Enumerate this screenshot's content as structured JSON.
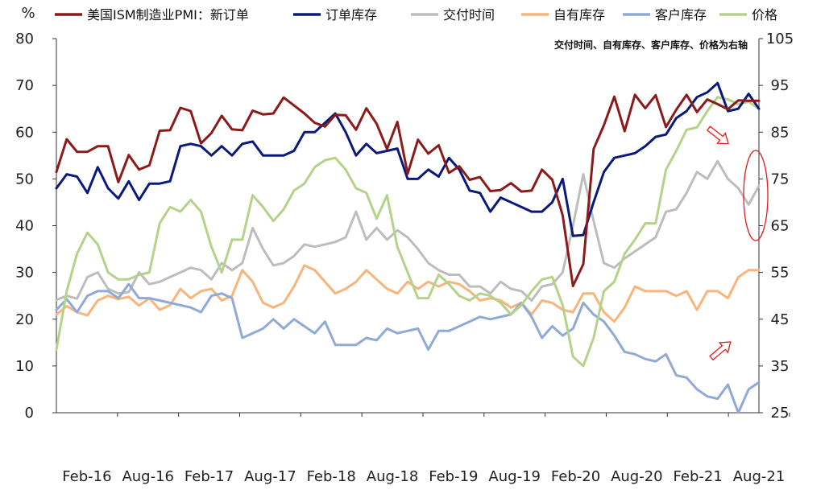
{
  "chart_data": {
    "type": "line",
    "unit_label": "%",
    "note": "交付时间、自有库存、客户库存、价格为右轴",
    "x_ticks": [
      "Feb-16",
      "Aug-16",
      "Feb-17",
      "Aug-17",
      "Feb-18",
      "Aug-18",
      "Feb-19",
      "Aug-19",
      "Feb-20",
      "Aug-20",
      "Feb-21",
      "Aug-21"
    ],
    "y_left": {
      "min": 0,
      "max": 80,
      "ticks": [
        0,
        10,
        20,
        30,
        40,
        50,
        60,
        70,
        80
      ]
    },
    "y_right": {
      "min": 25,
      "max": 105,
      "ticks": [
        25,
        35,
        45,
        55,
        65,
        75,
        85,
        95,
        105
      ]
    },
    "grid": false,
    "legend_position": "top",
    "series": [
      {
        "name": "美国ISM制造业PMI：新订单",
        "axis": "left",
        "color": "#8B1A1A",
        "values": [
          51.5,
          58.5,
          55.8,
          55.8,
          57.0,
          57.0,
          49.3,
          55.1,
          52.0,
          52.9,
          60.3,
          60.4,
          65.2,
          64.5,
          57.6,
          59.8,
          63.5,
          60.6,
          60.4,
          64.6,
          63.8,
          64.0,
          67.4,
          65.7,
          64.0,
          62.0,
          61.2,
          63.7,
          63.6,
          60.5,
          65.1,
          61.8,
          56.4,
          62.2,
          51.1,
          58.4,
          55.4,
          57.2,
          51.3,
          52.7,
          49.8,
          50.4,
          47.4,
          47.6,
          49.1,
          47.3,
          47.5,
          52.0,
          49.8,
          42.2,
          27.1,
          31.8,
          56.4,
          61.5,
          67.6,
          60.2,
          68.0,
          65.1,
          67.9,
          61.1,
          64.8,
          68.0,
          64.3,
          67.0,
          66.0,
          64.9,
          66.8,
          66.7,
          66.7
        ]
      },
      {
        "name": "订单库存",
        "axis": "left",
        "color": "#0A1A7A",
        "values": [
          48.0,
          51.0,
          50.5,
          47.0,
          52.5,
          48.0,
          45.8,
          49.5,
          45.5,
          49.0,
          49.0,
          49.5,
          57.0,
          57.5,
          57.0,
          55.0,
          57.0,
          55.0,
          57.5,
          58.0,
          55.0,
          55.0,
          55.0,
          56.0,
          60.0,
          60.0,
          62.0,
          64.0,
          60.0,
          55.0,
          57.5,
          55.5,
          56.0,
          56.5,
          50.0,
          50.0,
          52.0,
          50.5,
          54.5,
          52.0,
          47.5,
          47.0,
          43.0,
          46.0,
          45.0,
          44.0,
          43.0,
          43.0,
          45.0,
          50.0,
          37.8,
          38.0,
          45.0,
          51.5,
          54.5,
          55.0,
          55.5,
          57.0,
          59.0,
          59.5,
          63.0,
          64.5,
          67.5,
          68.5,
          70.5,
          64.5,
          65.0,
          68.2,
          65.0
        ]
      },
      {
        "name": "交付时间",
        "axis": "right",
        "color": "#BDBDBD",
        "values": [
          49.1,
          50.0,
          49.4,
          54.0,
          55.0,
          51.5,
          50.5,
          50.8,
          55.0,
          52.5,
          53.0,
          54.0,
          55.0,
          56.0,
          55.5,
          53.5,
          57.0,
          55.5,
          57.0,
          64.5,
          60.0,
          56.5,
          57.0,
          58.5,
          61.0,
          60.5,
          61.0,
          61.5,
          62.5,
          68.0,
          62.0,
          64.5,
          62.0,
          64.0,
          62.5,
          60.0,
          57.0,
          55.5,
          54.5,
          54.5,
          52.0,
          52.0,
          50.5,
          53.0,
          51.5,
          51.0,
          49.0,
          52.0,
          52.5,
          55.0,
          65.0,
          76.0,
          66.0,
          57.0,
          56.0,
          58.0,
          59.5,
          61.0,
          62.5,
          68.0,
          68.5,
          72.0,
          76.5,
          75.0,
          78.8,
          75.0,
          73.0,
          69.5,
          73.5
        ]
      },
      {
        "name": "自有库存",
        "axis": "right",
        "color": "#F7B57C",
        "values": [
          46.0,
          47.8,
          46.5,
          45.8,
          49.0,
          50.0,
          49.3,
          49.8,
          47.9,
          49.5,
          47.0,
          48.0,
          51.5,
          49.5,
          51.0,
          51.5,
          49.0,
          50.0,
          55.5,
          53.0,
          48.5,
          47.5,
          48.5,
          52.0,
          56.5,
          55.5,
          53.0,
          50.5,
          51.5,
          53.0,
          55.5,
          53.5,
          51.5,
          50.5,
          53.0,
          51.5,
          53.0,
          52.0,
          53.0,
          52.5,
          51.0,
          49.0,
          49.5,
          49.0,
          47.5,
          48.5,
          46.0,
          49.0,
          48.5,
          47.0,
          46.5,
          50.5,
          50.5,
          46.5,
          44.5,
          47.5,
          52.0,
          51.0,
          51.0,
          51.0,
          50.0,
          51.0,
          47.0,
          51.0,
          51.0,
          49.5,
          54.0,
          55.5,
          55.5
        ]
      },
      {
        "name": "客户库存",
        "axis": "right",
        "color": "#8FAAD6",
        "values": [
          47.0,
          49.3,
          46.5,
          50.0,
          51.0,
          51.0,
          49.5,
          52.5,
          49.5,
          49.5,
          49.0,
          48.5,
          48.0,
          47.5,
          46.5,
          50.0,
          50.5,
          49.5,
          41.0,
          42.0,
          43.0,
          45.0,
          43.0,
          45.0,
          43.5,
          42.0,
          44.5,
          39.5,
          39.5,
          39.5,
          41.0,
          40.5,
          43.0,
          42.0,
          42.5,
          43.0,
          38.5,
          42.5,
          42.5,
          43.5,
          44.5,
          45.5,
          45.0,
          45.5,
          46.0,
          48.5,
          45.5,
          41.0,
          43.5,
          41.5,
          43.0,
          48.5,
          46.0,
          44.5,
          41.5,
          38.0,
          37.5,
          36.5,
          36.0,
          37.5,
          33.0,
          32.5,
          30.0,
          28.5,
          28.0,
          31.0,
          25.0,
          30.0,
          31.5
        ]
      },
      {
        "name": "价格",
        "axis": "right",
        "color": "#B5D28A",
        "values": [
          38.5,
          51.0,
          59.0,
          63.5,
          61.0,
          55.0,
          53.5,
          53.5,
          54.5,
          55.0,
          65.5,
          69.0,
          68.0,
          70.5,
          68.0,
          60.5,
          55.0,
          62.0,
          62.0,
          71.5,
          69.0,
          66.0,
          68.5,
          72.5,
          74.0,
          77.5,
          79.0,
          79.5,
          77.0,
          73.0,
          72.0,
          66.5,
          71.5,
          60.5,
          55.0,
          49.5,
          49.5,
          54.5,
          52.5,
          50.0,
          49.0,
          50.5,
          50.0,
          48.5,
          46.0,
          48.0,
          51.0,
          53.5,
          54.0,
          48.0,
          37.0,
          35.0,
          41.0,
          51.0,
          53.0,
          59.0,
          62.0,
          65.5,
          65.5,
          77.0,
          81.0,
          85.5,
          86.0,
          89.5,
          92.5,
          92.0,
          91.0,
          91.5,
          90.0
        ]
      }
    ]
  }
}
